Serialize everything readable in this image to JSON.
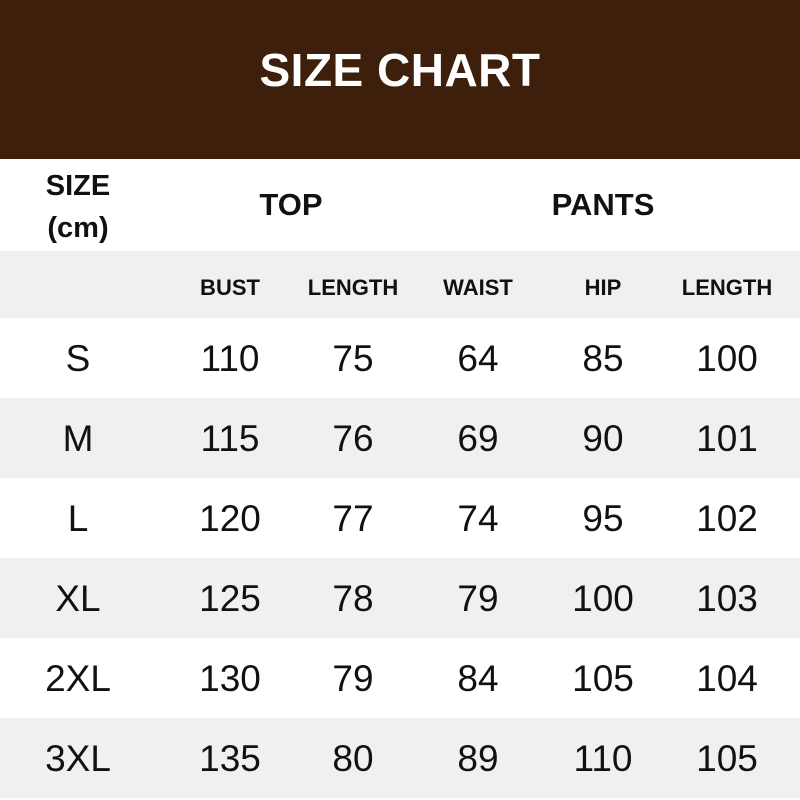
{
  "title": "SIZE CHART",
  "header": {
    "size_label": "SIZE",
    "unit_label": "(cm)",
    "top_label": "TOP",
    "pants_label": "PANTS"
  },
  "columns": [
    "BUST",
    "LENGTH",
    "WAIST",
    "HIP",
    "LENGTH"
  ],
  "rows": [
    {
      "size": "S",
      "values": [
        "110",
        "75",
        "64",
        "85",
        "100"
      ]
    },
    {
      "size": "M",
      "values": [
        "115",
        "76",
        "69",
        "90",
        "101"
      ]
    },
    {
      "size": "L",
      "values": [
        "120",
        "77",
        "74",
        "95",
        "102"
      ]
    },
    {
      "size": "XL",
      "values": [
        "125",
        "78",
        "79",
        "100",
        "103"
      ]
    },
    {
      "size": "2XL",
      "values": [
        "130",
        "79",
        "84",
        "105",
        "104"
      ]
    },
    {
      "size": "3XL",
      "values": [
        "135",
        "80",
        "89",
        "110",
        "105"
      ]
    }
  ],
  "colors": {
    "banner": "#3d1f0b",
    "stripe": "#f0f0f0"
  }
}
